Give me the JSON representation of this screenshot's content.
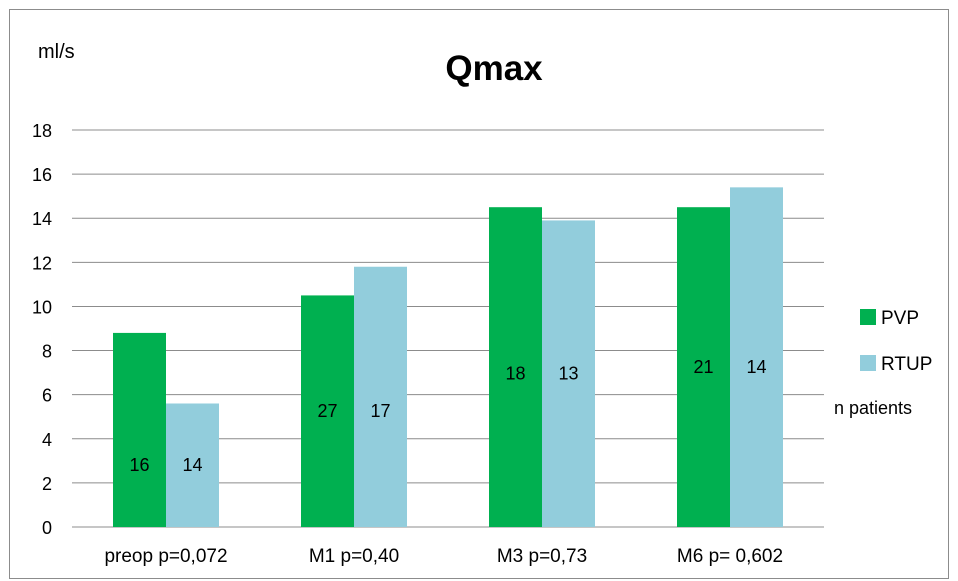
{
  "chart_data": {
    "type": "bar",
    "title": "Qmax",
    "ylabel": "ml/s",
    "xlabel": "",
    "categories": [
      "preop p=0,072",
      "M1 p=0,40",
      "M3 p=0,73",
      "M6 p= 0,602"
    ],
    "ylim": [
      0,
      18
    ],
    "ytick_step": 2,
    "grid": true,
    "legend_position": "right",
    "series": [
      {
        "name": "PVP",
        "color": "#00b050",
        "values": [
          8.8,
          10.5,
          14.5,
          14.5
        ],
        "n_labels": [
          "16",
          "27",
          "18",
          "21"
        ]
      },
      {
        "name": "RTUP",
        "color": "#92cddc",
        "values": [
          5.6,
          11.8,
          13.9,
          15.4
        ],
        "n_labels": [
          "14",
          "17",
          "13",
          "14"
        ]
      }
    ],
    "legend_note": "n patients"
  }
}
